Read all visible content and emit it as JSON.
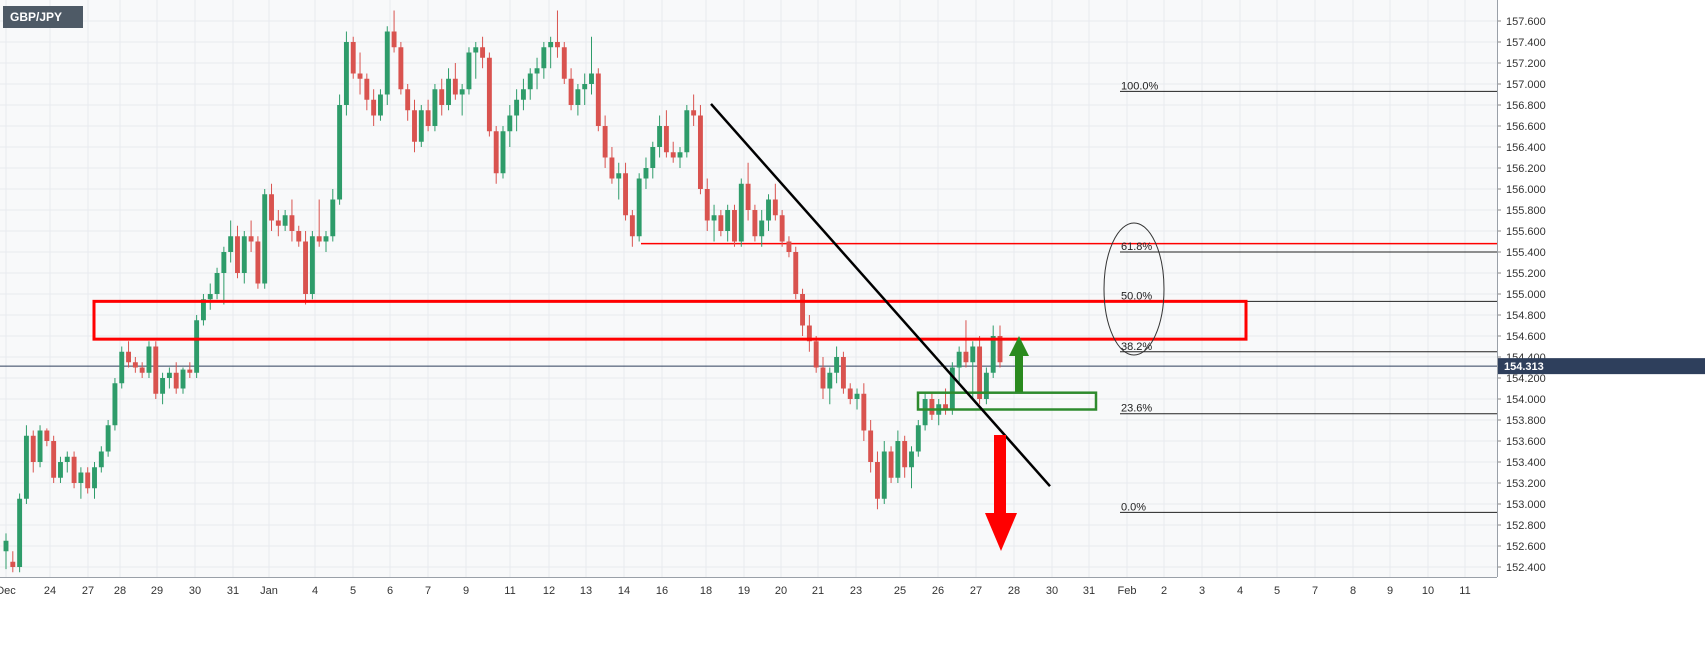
{
  "chart_data": {
    "type": "candlestick",
    "symbol": "GBP/JPY",
    "current_price": "154.313",
    "ylim": [
      152.3,
      157.75
    ],
    "y_ticks": [
      "157.600",
      "157.400",
      "157.200",
      "157.000",
      "156.800",
      "156.600",
      "156.400",
      "156.200",
      "156.000",
      "155.800",
      "155.600",
      "155.400",
      "155.200",
      "155.000",
      "154.800",
      "154.600",
      "154.400",
      "154.200",
      "154.000",
      "153.800",
      "153.600",
      "153.400",
      "153.200",
      "153.000",
      "152.800",
      "152.600",
      "152.400"
    ],
    "x_labels": [
      "Dec",
      "24",
      "27",
      "28",
      "29",
      "30",
      "31",
      "Jan",
      "4",
      "5",
      "6",
      "7",
      "9",
      "11",
      "12",
      "13",
      "14",
      "16",
      "18",
      "19",
      "20",
      "21",
      "23",
      "25",
      "26",
      "27",
      "28",
      "30",
      "31",
      "Feb",
      "2",
      "3",
      "4",
      "5",
      "7",
      "8",
      "9",
      "10",
      "11"
    ],
    "fibonacci": [
      {
        "label": "100.0%",
        "value": 156.93
      },
      {
        "label": "61.8%",
        "value": 155.4
      },
      {
        "label": "50.0%",
        "value": 154.93
      },
      {
        "label": "38.2%",
        "value": 154.45
      },
      {
        "label": "23.6%",
        "value": 153.86
      },
      {
        "label": "0.0%",
        "value": 152.92
      }
    ],
    "support_line": 155.48,
    "resistance_zone": [
      154.57,
      154.93
    ],
    "support_zone": [
      153.9,
      154.06
    ],
    "trendline": [
      [
        156.81
      ],
      [
        153.17
      ]
    ],
    "series": [
      {
        "ohlc": [
          [
            152.55,
            152.72,
            152.38,
            152.65
          ],
          [
            152.45,
            152.55,
            152.35,
            152.4
          ],
          [
            152.4,
            153.1,
            152.35,
            153.05
          ],
          [
            153.05,
            153.75,
            153.0,
            153.65
          ],
          [
            153.65,
            153.7,
            153.3,
            153.4
          ],
          [
            153.4,
            153.75,
            153.35,
            153.7
          ],
          [
            153.7,
            153.72,
            153.55,
            153.6
          ],
          [
            153.6,
            153.65,
            153.2,
            153.25
          ],
          [
            153.25,
            153.45,
            153.2,
            153.4
          ],
          [
            153.4,
            153.5,
            153.3,
            153.45
          ],
          [
            153.45,
            153.5,
            153.15,
            153.2
          ],
          [
            153.2,
            153.35,
            153.05,
            153.3
          ],
          [
            153.3,
            153.35,
            153.1,
            153.15
          ],
          [
            153.15,
            153.4,
            153.05,
            153.35
          ],
          [
            153.35,
            153.55,
            153.3,
            153.5
          ],
          [
            153.5,
            153.8,
            153.45,
            153.75
          ],
          [
            153.75,
            154.2,
            153.7,
            154.15
          ],
          [
            154.15,
            154.5,
            154.1,
            154.45
          ],
          [
            154.45,
            154.55,
            154.3,
            154.35
          ],
          [
            154.35,
            154.4,
            154.25,
            154.3
          ],
          [
            154.3,
            154.35,
            154.2,
            154.25
          ],
          [
            154.25,
            154.55,
            154.2,
            154.5
          ],
          [
            154.5,
            154.55,
            154.0,
            154.05
          ],
          [
            154.05,
            154.25,
            153.95,
            154.2
          ],
          [
            154.2,
            154.3,
            154.1,
            154.25
          ],
          [
            154.25,
            154.35,
            154.05,
            154.1
          ],
          [
            154.1,
            154.3,
            154.05,
            154.28
          ],
          [
            154.28,
            154.35,
            154.2,
            154.25
          ],
          [
            154.25,
            154.8,
            154.2,
            154.75
          ],
          [
            154.75,
            155.0,
            154.7,
            154.95
          ],
          [
            154.95,
            155.1,
            154.85,
            155.0
          ],
          [
            155.0,
            155.25,
            154.95,
            155.2
          ],
          [
            155.2,
            155.45,
            154.9,
            155.4
          ],
          [
            155.4,
            155.7,
            155.3,
            155.55
          ],
          [
            155.55,
            155.65,
            155.15,
            155.2
          ],
          [
            155.2,
            155.6,
            155.1,
            155.55
          ],
          [
            155.55,
            155.7,
            155.4,
            155.5
          ],
          [
            155.5,
            155.55,
            155.05,
            155.1
          ],
          [
            155.1,
            156.0,
            155.05,
            155.95
          ],
          [
            155.95,
            156.05,
            155.6,
            155.7
          ],
          [
            155.7,
            155.8,
            155.55,
            155.65
          ],
          [
            155.65,
            155.8,
            155.6,
            155.75
          ],
          [
            155.75,
            155.9,
            155.5,
            155.6
          ],
          [
            155.6,
            155.65,
            155.45,
            155.5
          ],
          [
            155.5,
            155.6,
            154.9,
            155.0
          ],
          [
            155.0,
            155.6,
            154.95,
            155.55
          ],
          [
            155.55,
            155.9,
            155.45,
            155.5
          ],
          [
            155.5,
            155.6,
            155.4,
            155.55
          ],
          [
            155.55,
            156.0,
            155.5,
            155.9
          ],
          [
            155.9,
            156.9,
            155.85,
            156.8
          ],
          [
            156.8,
            157.5,
            156.7,
            157.4
          ],
          [
            157.4,
            157.45,
            157.05,
            157.1
          ],
          [
            157.1,
            157.3,
            156.9,
            157.05
          ],
          [
            157.05,
            157.1,
            156.75,
            156.85
          ],
          [
            156.85,
            156.95,
            156.6,
            156.7
          ],
          [
            156.7,
            156.95,
            156.65,
            156.9
          ],
          [
            156.9,
            157.55,
            156.8,
            157.5
          ],
          [
            157.5,
            157.7,
            157.3,
            157.35
          ],
          [
            157.35,
            157.4,
            156.9,
            156.95
          ],
          [
            156.95,
            157.0,
            156.65,
            156.75
          ],
          [
            156.75,
            156.85,
            156.35,
            156.45
          ],
          [
            156.45,
            156.8,
            156.4,
            156.75
          ],
          [
            156.75,
            156.85,
            156.55,
            156.6
          ],
          [
            156.6,
            157.0,
            156.55,
            156.95
          ],
          [
            156.95,
            157.05,
            156.7,
            156.8
          ],
          [
            156.8,
            157.15,
            156.75,
            157.05
          ],
          [
            157.05,
            157.2,
            156.85,
            156.9
          ],
          [
            156.9,
            157.0,
            156.7,
            156.95
          ],
          [
            156.95,
            157.35,
            156.9,
            157.3
          ],
          [
            157.3,
            157.4,
            157.05,
            157.35
          ],
          [
            157.35,
            157.45,
            157.15,
            157.25
          ],
          [
            157.25,
            157.3,
            156.5,
            156.55
          ],
          [
            156.55,
            156.6,
            156.05,
            156.15
          ],
          [
            156.15,
            156.6,
            156.1,
            156.55
          ],
          [
            156.55,
            156.8,
            156.4,
            156.7
          ],
          [
            156.7,
            156.95,
            156.55,
            156.85
          ],
          [
            156.85,
            157.05,
            156.75,
            156.95
          ],
          [
            156.95,
            157.15,
            156.85,
            157.1
          ],
          [
            157.1,
            157.25,
            156.95,
            157.15
          ],
          [
            157.15,
            157.4,
            157.05,
            157.35
          ],
          [
            157.35,
            157.45,
            157.15,
            157.4
          ],
          [
            157.4,
            157.7,
            157.25,
            157.35
          ],
          [
            157.35,
            157.4,
            157.0,
            157.05
          ],
          [
            157.05,
            157.15,
            156.75,
            156.8
          ],
          [
            156.8,
            157.0,
            156.7,
            156.95
          ],
          [
            156.95,
            157.1,
            156.8,
            157.0
          ],
          [
            157.0,
            157.45,
            156.9,
            157.1
          ],
          [
            157.1,
            157.15,
            156.55,
            156.6
          ],
          [
            156.6,
            156.7,
            156.2,
            156.3
          ],
          [
            156.3,
            156.4,
            156.05,
            156.1
          ],
          [
            156.1,
            156.25,
            155.9,
            156.15
          ],
          [
            156.15,
            156.25,
            155.7,
            155.75
          ],
          [
            155.75,
            155.8,
            155.45,
            155.55
          ],
          [
            155.55,
            156.15,
            155.5,
            156.1
          ],
          [
            156.1,
            156.3,
            156.0,
            156.2
          ],
          [
            156.2,
            156.45,
            156.1,
            156.4
          ],
          [
            156.4,
            156.7,
            156.3,
            156.6
          ],
          [
            156.6,
            156.75,
            156.3,
            156.35
          ],
          [
            156.35,
            156.45,
            156.25,
            156.3
          ],
          [
            156.3,
            156.4,
            156.2,
            156.35
          ],
          [
            156.35,
            156.8,
            156.3,
            156.75
          ],
          [
            156.75,
            156.9,
            156.6,
            156.7
          ],
          [
            156.7,
            156.8,
            155.95,
            156.0
          ],
          [
            156.0,
            156.1,
            155.6,
            155.7
          ],
          [
            155.7,
            155.85,
            155.5,
            155.75
          ],
          [
            155.75,
            155.8,
            155.55,
            155.6
          ],
          [
            155.6,
            155.85,
            155.5,
            155.8
          ],
          [
            155.8,
            155.85,
            155.45,
            155.5
          ],
          [
            155.5,
            156.1,
            155.45,
            156.05
          ],
          [
            156.05,
            156.25,
            155.7,
            155.8
          ],
          [
            155.8,
            155.85,
            155.5,
            155.55
          ],
          [
            155.55,
            155.8,
            155.45,
            155.7
          ],
          [
            155.7,
            155.95,
            155.6,
            155.9
          ],
          [
            155.9,
            156.05,
            155.7,
            155.75
          ],
          [
            155.75,
            155.8,
            155.45,
            155.5
          ],
          [
            155.5,
            155.55,
            155.35,
            155.4
          ],
          [
            155.4,
            155.45,
            154.95,
            155.0
          ],
          [
            155.0,
            155.05,
            154.6,
            154.7
          ],
          [
            154.7,
            154.8,
            154.45,
            154.55
          ],
          [
            154.55,
            154.6,
            154.25,
            154.3
          ],
          [
            154.3,
            154.4,
            154.0,
            154.1
          ],
          [
            154.1,
            154.3,
            153.95,
            154.25
          ],
          [
            154.25,
            154.5,
            154.15,
            154.4
          ],
          [
            154.4,
            154.45,
            154.05,
            154.1
          ],
          [
            154.1,
            154.15,
            153.95,
            154.0
          ],
          [
            154.0,
            154.1,
            153.9,
            154.05
          ],
          [
            154.05,
            154.15,
            153.6,
            153.7
          ],
          [
            153.7,
            153.8,
            153.3,
            153.4
          ],
          [
            153.4,
            153.5,
            152.95,
            153.05
          ],
          [
            153.05,
            153.6,
            153.0,
            153.5
          ],
          [
            153.5,
            153.55,
            153.2,
            153.25
          ],
          [
            153.25,
            153.7,
            153.2,
            153.6
          ],
          [
            153.6,
            153.65,
            153.25,
            153.35
          ],
          [
            153.35,
            153.55,
            153.15,
            153.5
          ],
          [
            153.5,
            153.8,
            153.45,
            153.75
          ],
          [
            153.75,
            154.05,
            153.7,
            154.0
          ],
          [
            154.0,
            154.05,
            153.8,
            153.85
          ],
          [
            153.85,
            154.0,
            153.75,
            153.95
          ],
          [
            153.95,
            154.1,
            153.85,
            153.9
          ],
          [
            153.9,
            154.35,
            153.85,
            154.3
          ],
          [
            154.3,
            154.5,
            154.15,
            154.45
          ],
          [
            154.45,
            154.75,
            154.3,
            154.35
          ],
          [
            154.35,
            154.55,
            154.0,
            154.5
          ],
          [
            154.5,
            154.6,
            153.95,
            154.0
          ],
          [
            154.0,
            154.3,
            153.95,
            154.25
          ],
          [
            154.25,
            154.7,
            154.2,
            154.6
          ],
          [
            154.6,
            154.7,
            154.3,
            154.35
          ]
        ]
      }
    ]
  }
}
